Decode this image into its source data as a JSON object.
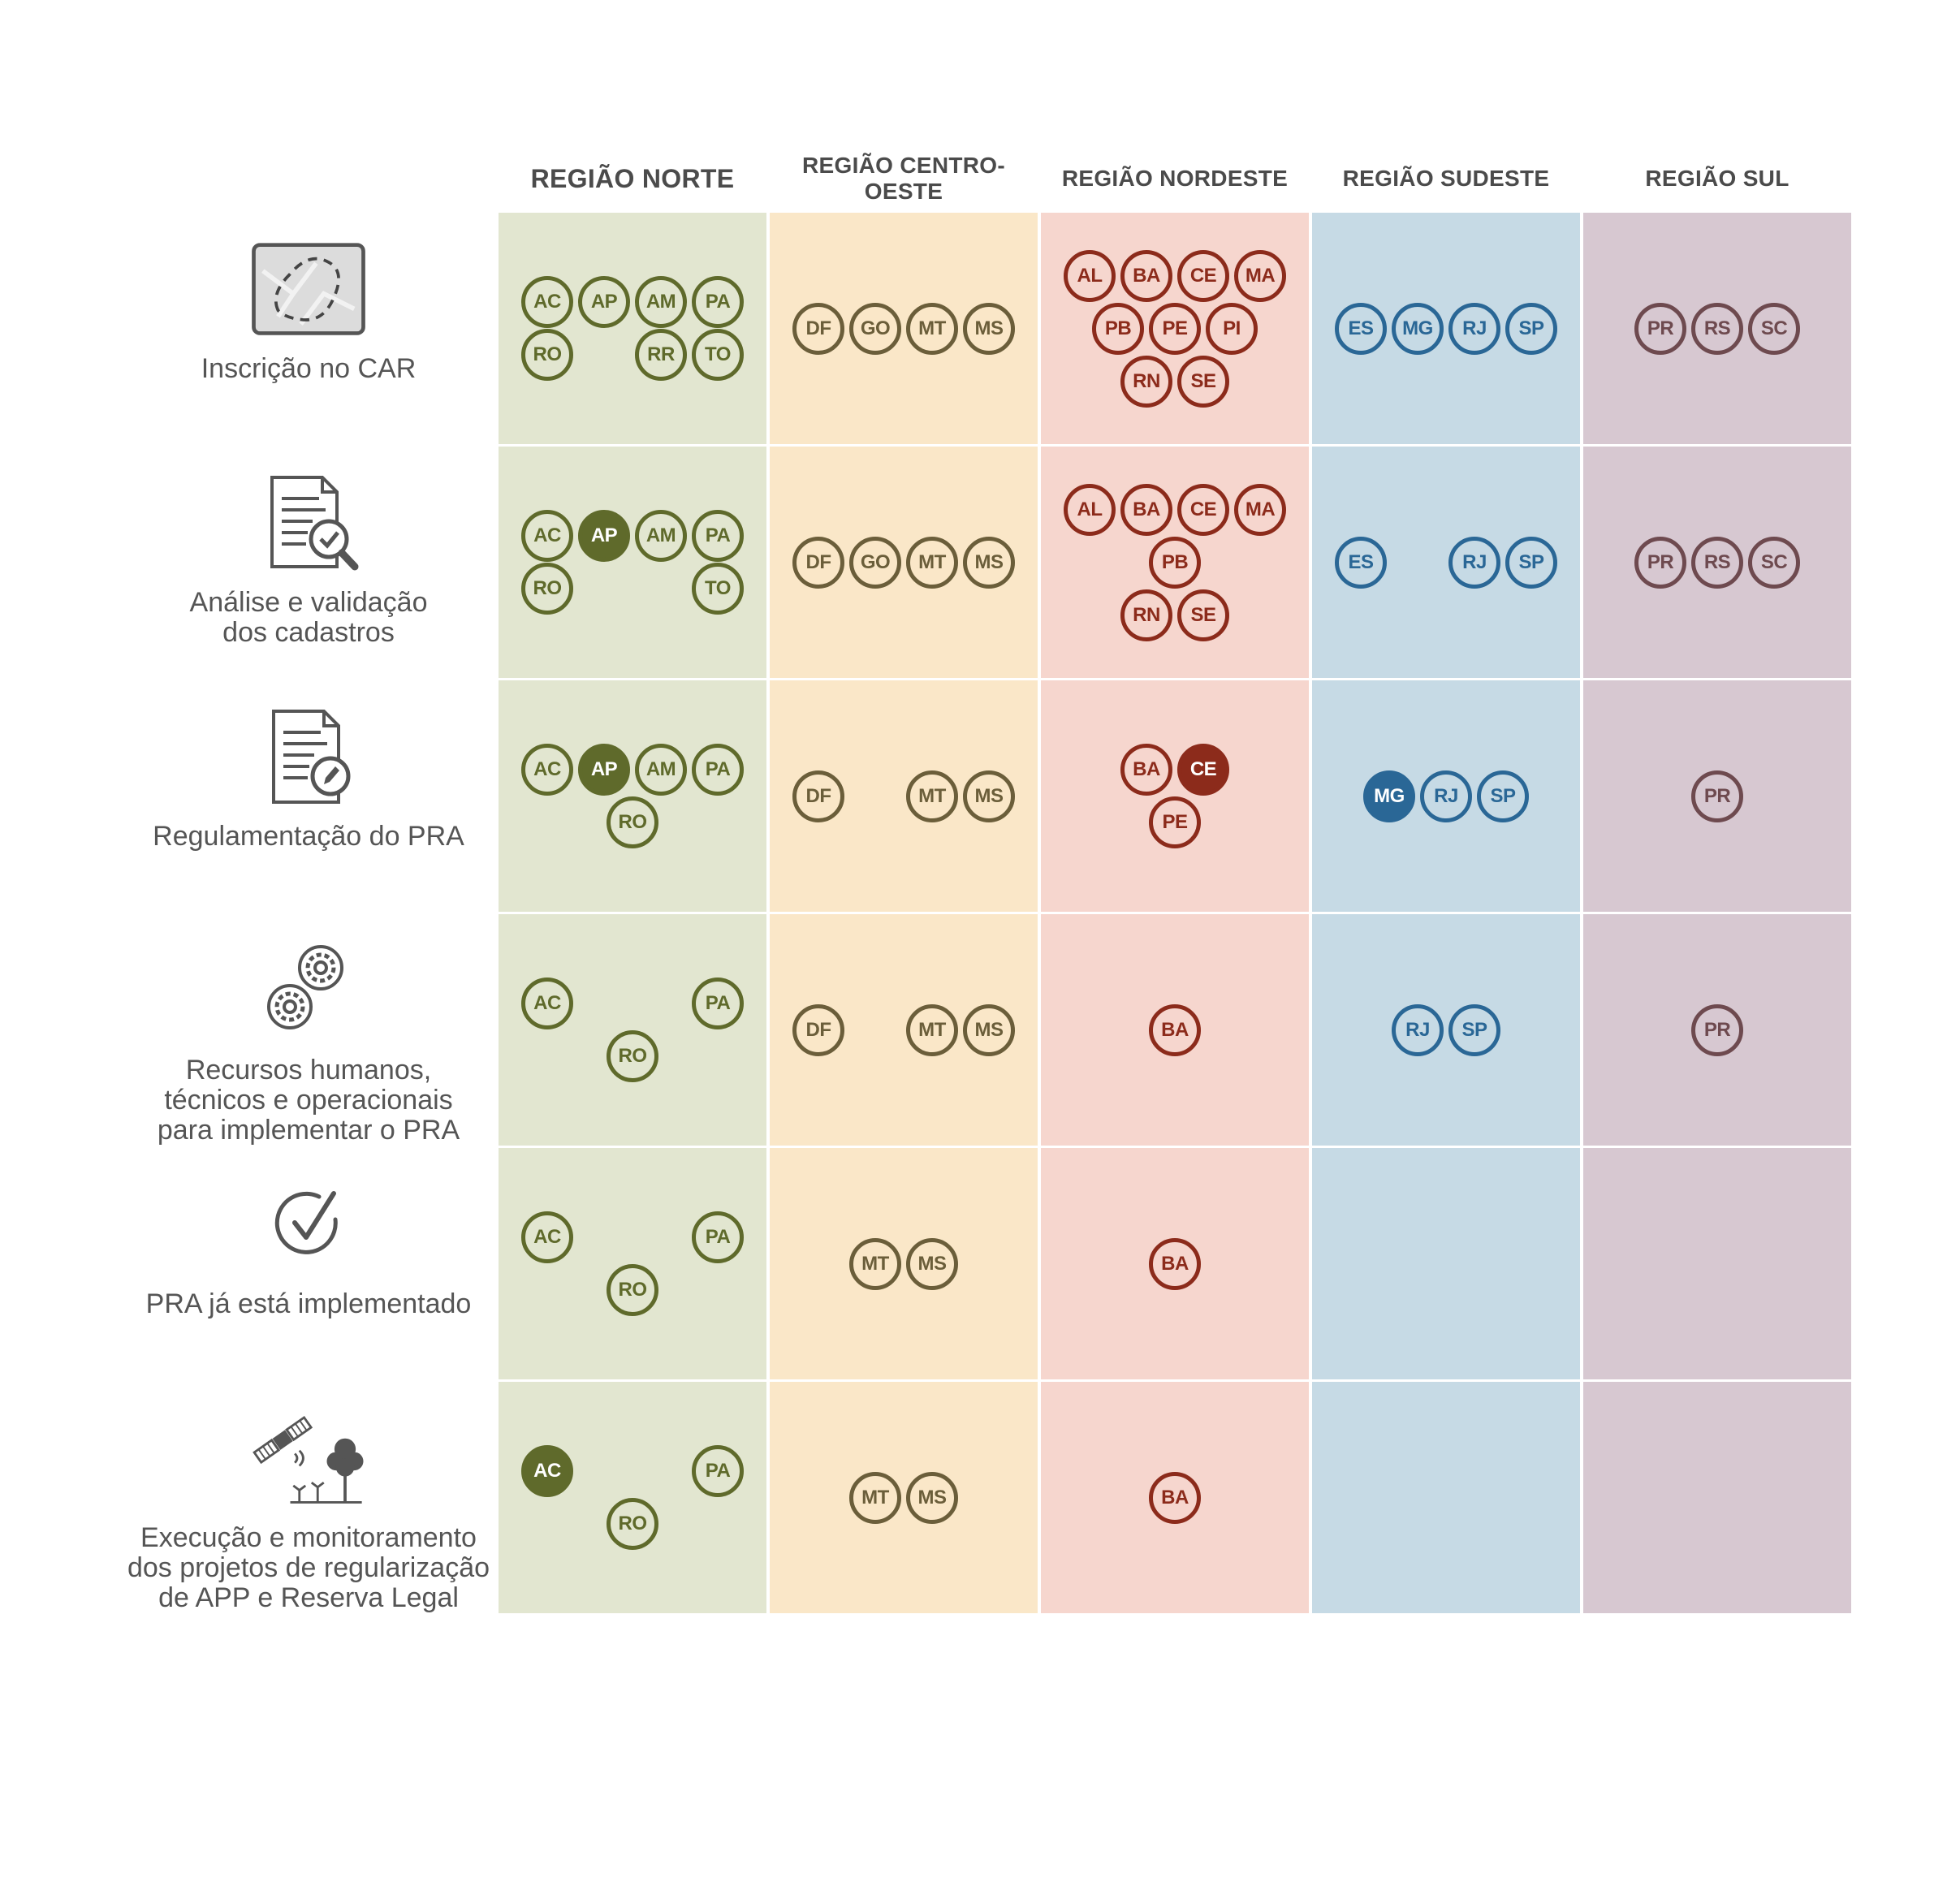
{
  "regions": [
    {
      "key": "norte",
      "name": "REGIÃO NORTE",
      "bg": "#e2e6d0",
      "color": "#5f6a2b"
    },
    {
      "key": "centro",
      "name": "REGIÃO CENTRO-OESTE",
      "bg": "#fae7c8",
      "color": "#6b5e3a"
    },
    {
      "key": "nordeste",
      "name": "REGIÃO NORDESTE",
      "bg": "#f6d6ce",
      "color": "#8c2b1b"
    },
    {
      "key": "sudeste",
      "name": "REGIÃO SUDESTE",
      "bg": "#c6dae5",
      "color": "#2a6796"
    },
    {
      "key": "sul",
      "name": "REGIÃO SUL",
      "bg": "#d7c8d1",
      "color": "#6e4a4f"
    }
  ],
  "rows": [
    {
      "key": "car",
      "label_lines": [
        "Inscrição no CAR"
      ],
      "icon": "map-area-icon",
      "cells": {
        "norte": [
          [
            "AC",
            "AP",
            "AM",
            "PA"
          ],
          [
            "RO",
            null,
            "RR",
            "TO"
          ]
        ],
        "centro": [
          [
            "DF",
            "GO",
            "MT",
            "MS"
          ]
        ],
        "nordeste": [
          [
            "AL",
            "BA",
            "CE",
            "MA"
          ],
          [
            "PB",
            "PE",
            "PI"
          ],
          [
            "RN",
            "SE"
          ]
        ],
        "sudeste": [
          [
            "ES",
            "MG",
            "RJ",
            "SP"
          ]
        ],
        "sul": [
          [
            "PR",
            "RS",
            "SC"
          ]
        ]
      },
      "filled": []
    },
    {
      "key": "analise",
      "label_lines": [
        "Análise e validação",
        "dos cadastros"
      ],
      "icon": "document-check-icon",
      "cells": {
        "norte": [
          [
            "AC",
            "AP",
            "AM",
            "PA"
          ],
          [
            "RO",
            null,
            null,
            "TO"
          ]
        ],
        "centro": [
          [
            "DF",
            "GO",
            "MT",
            "MS"
          ]
        ],
        "nordeste": [
          [
            "AL",
            "BA",
            "CE",
            "MA"
          ],
          [
            "PB"
          ],
          [
            "RN",
            "SE"
          ]
        ],
        "sudeste": [
          [
            "ES",
            null,
            "RJ",
            "SP"
          ]
        ],
        "sul": [
          [
            "PR",
            "RS",
            "SC"
          ]
        ]
      },
      "filled": [
        "AP"
      ]
    },
    {
      "key": "regulamentacao",
      "label_lines": [
        "Regulamentação do PRA"
      ],
      "icon": "document-edit-icon",
      "cells": {
        "norte": [
          [
            "AC",
            "AP",
            "AM",
            "PA"
          ],
          [
            "RO"
          ]
        ],
        "centro": [
          [
            "DF",
            null,
            "MT",
            "MS"
          ]
        ],
        "nordeste": [
          [
            "BA",
            "CE"
          ],
          [
            "PE"
          ]
        ],
        "sudeste": [
          [
            "MG",
            "RJ",
            "SP"
          ]
        ],
        "sul": [
          [
            "PR"
          ]
        ]
      },
      "filled": [
        "AP",
        "CE",
        "MG"
      ]
    },
    {
      "key": "recursos",
      "label_lines": [
        "Recursos humanos,",
        "técnicos e operacionais",
        "para implementar o PRA"
      ],
      "icon": "gears-icon",
      "cells": {
        "norte": [
          [
            "AC",
            null,
            null,
            "PA"
          ],
          [
            "RO"
          ]
        ],
        "centro": [
          [
            "DF",
            null,
            "MT",
            "MS"
          ]
        ],
        "nordeste": [
          [
            "BA"
          ]
        ],
        "sudeste": [
          [
            "RJ",
            "SP"
          ]
        ],
        "sul": [
          [
            "PR"
          ]
        ]
      },
      "filled": []
    },
    {
      "key": "implementado",
      "label_lines": [
        "PRA já está implementado"
      ],
      "icon": "check-circle-icon",
      "cells": {
        "norte": [
          [
            "AC",
            null,
            null,
            "PA"
          ],
          [
            "RO"
          ]
        ],
        "centro": [
          [
            "MT",
            "MS"
          ]
        ],
        "nordeste": [
          [
            "BA"
          ]
        ],
        "sudeste": [],
        "sul": []
      },
      "filled": []
    },
    {
      "key": "execucao",
      "label_lines": [
        "Execução e monitoramento",
        "dos projetos de regularização",
        "de APP e Reserva Legal"
      ],
      "icon": "satellite-trees-icon",
      "cells": {
        "norte": [
          [
            "AC",
            null,
            null,
            "PA"
          ],
          [
            "RO"
          ]
        ],
        "centro": [
          [
            "MT",
            "MS"
          ]
        ],
        "nordeste": [
          [
            "BA"
          ]
        ],
        "sudeste": [],
        "sul": []
      },
      "filled": [
        "AC"
      ]
    }
  ]
}
